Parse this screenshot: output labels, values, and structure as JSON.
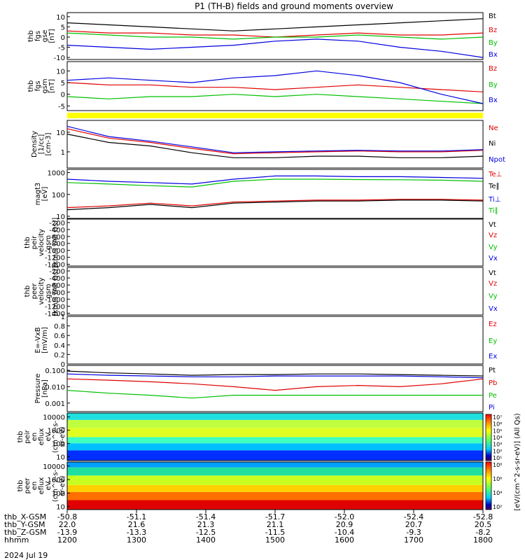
{
  "title": "P1 (TH-B) fields and ground moments overview",
  "date_label": "2024 Jul 19",
  "colors": {
    "black": "#000000",
    "red": "#e00000",
    "green": "#00c000",
    "blue": "#0000e0",
    "yellow": "#ffff00"
  },
  "chart_data": [
    {
      "type": "line",
      "name": "fgs_gse",
      "ylabel_lines": [
        "thb",
        "fgs",
        "gse",
        "[nT]"
      ],
      "ylim": [
        -11,
        12
      ],
      "y_ticks": [
        10,
        5,
        0,
        -5,
        -10
      ],
      "series": [
        {
          "name": "Bt",
          "color": "black",
          "x": [
            0,
            0.1,
            0.2,
            0.3,
            0.4,
            0.5,
            0.6,
            0.7,
            0.8,
            0.9,
            1.0
          ],
          "y": [
            7,
            6,
            5,
            4,
            3,
            4,
            5,
            6,
            7,
            8,
            9
          ]
        },
        {
          "name": "Bz",
          "color": "red",
          "x": [
            0,
            0.1,
            0.2,
            0.3,
            0.4,
            0.5,
            0.6,
            0.7,
            0.8,
            0.9,
            1.0
          ],
          "y": [
            3,
            2,
            2,
            1,
            1,
            0,
            1,
            2,
            1,
            1,
            2
          ]
        },
        {
          "name": "By",
          "color": "green",
          "x": [
            0,
            0.1,
            0.2,
            0.3,
            0.4,
            0.5,
            0.6,
            0.7,
            0.8,
            0.9,
            1.0
          ],
          "y": [
            2,
            1,
            0,
            0,
            -1,
            0,
            0,
            1,
            0,
            -1,
            0
          ]
        },
        {
          "name": "Bx",
          "color": "blue",
          "x": [
            0,
            0.1,
            0.2,
            0.3,
            0.4,
            0.5,
            0.6,
            0.7,
            0.8,
            0.9,
            1.0
          ],
          "y": [
            -4,
            -5,
            -6,
            -5,
            -4,
            -2,
            -1,
            -2,
            -5,
            -7,
            -10
          ]
        }
      ]
    },
    {
      "type": "line",
      "name": "fgs_gsm",
      "ylabel_lines": [
        "thb",
        "fgs",
        "gsm",
        "[nT]"
      ],
      "ylim": [
        -7,
        14
      ],
      "y_ticks": [
        10,
        5,
        0,
        -5
      ],
      "series": [
        {
          "name": "Bz",
          "color": "red",
          "x": [
            0,
            0.1,
            0.2,
            0.3,
            0.4,
            0.5,
            0.6,
            0.7,
            0.8,
            0.9,
            1.0
          ],
          "y": [
            5,
            4,
            4,
            3,
            3,
            2,
            3,
            4,
            3,
            2,
            1
          ]
        },
        {
          "name": "By",
          "color": "green",
          "x": [
            0,
            0.1,
            0.2,
            0.3,
            0.4,
            0.5,
            0.6,
            0.7,
            0.8,
            0.9,
            1.0
          ],
          "y": [
            -1,
            -2,
            -1,
            -1,
            0,
            -1,
            0,
            -1,
            -2,
            -3,
            -4
          ]
        },
        {
          "name": "Bx",
          "color": "blue",
          "x": [
            0,
            0.1,
            0.2,
            0.3,
            0.4,
            0.5,
            0.6,
            0.7,
            0.8,
            0.9,
            1.0
          ],
          "y": [
            6,
            7,
            6,
            5,
            7,
            8,
            10,
            8,
            5,
            0,
            -4
          ]
        }
      ]
    },
    {
      "type": "line",
      "name": "density",
      "ylabel_lines": [
        "Density",
        "[1/cc]",
        "[cm-3]"
      ],
      "scale": "log",
      "ylim": [
        0.15,
        40
      ],
      "y_ticks": [
        10,
        1
      ],
      "series": [
        {
          "name": "Ne",
          "color": "red",
          "x": [
            0,
            0.1,
            0.2,
            0.3,
            0.4,
            0.5,
            0.6,
            0.7,
            0.8,
            0.9,
            1.0
          ],
          "y": [
            15,
            5,
            3,
            1.5,
            0.8,
            0.9,
            1,
            1.1,
            1.0,
            1.0,
            1.2
          ]
        },
        {
          "name": "Ni",
          "color": "black",
          "x": [
            0,
            0.1,
            0.2,
            0.3,
            0.4,
            0.5,
            0.6,
            0.7,
            0.8,
            0.9,
            1.0
          ],
          "y": [
            8,
            3,
            2,
            0.9,
            0.5,
            0.5,
            0.6,
            0.6,
            0.5,
            0.5,
            0.6
          ]
        },
        {
          "name": "Npot",
          "color": "blue",
          "x": [
            0,
            0.1,
            0.2,
            0.3,
            0.4,
            0.5,
            0.6,
            0.7,
            0.8,
            0.9,
            1.0
          ],
          "y": [
            20,
            6,
            3.5,
            1.8,
            0.9,
            1.0,
            1.1,
            1.2,
            1.1,
            1.1,
            1.3
          ]
        }
      ]
    },
    {
      "type": "line",
      "name": "temperature",
      "ylabel_lines": [
        "magt3",
        "[eV]"
      ],
      "scale": "log",
      "ylim": [
        8,
        1400
      ],
      "y_ticks": [
        1000,
        100,
        10
      ],
      "series": [
        {
          "name": "Te⊥",
          "color": "red",
          "x": [
            0,
            0.1,
            0.2,
            0.3,
            0.4,
            0.5,
            0.6,
            0.7,
            0.8,
            0.9,
            1.0
          ],
          "y": [
            25,
            30,
            40,
            30,
            45,
            50,
            55,
            55,
            60,
            60,
            55
          ]
        },
        {
          "name": "Te∥",
          "color": "black",
          "x": [
            0,
            0.1,
            0.2,
            0.3,
            0.4,
            0.5,
            0.6,
            0.7,
            0.8,
            0.9,
            1.0
          ],
          "y": [
            20,
            25,
            35,
            25,
            40,
            45,
            50,
            50,
            55,
            55,
            50
          ]
        },
        {
          "name": "Ti⊥",
          "color": "blue",
          "x": [
            0,
            0.1,
            0.2,
            0.3,
            0.4,
            0.5,
            0.6,
            0.7,
            0.8,
            0.9,
            1.0
          ],
          "y": [
            500,
            400,
            350,
            300,
            500,
            700,
            700,
            650,
            650,
            600,
            550
          ]
        },
        {
          "name": "Ti∥",
          "color": "green",
          "x": [
            0,
            0.1,
            0.2,
            0.3,
            0.4,
            0.5,
            0.6,
            0.7,
            0.8,
            0.9,
            1.0
          ],
          "y": [
            350,
            300,
            250,
            220,
            400,
            500,
            500,
            480,
            470,
            450,
            400
          ]
        }
      ]
    },
    {
      "type": "line",
      "name": "peir_velocity",
      "ylabel_lines": [
        "thb",
        "peir",
        "velocity",
        "gsm",
        "[km/s (All Qs)]"
      ],
      "ylim": [
        -1450,
        -100
      ],
      "y_ticks": [
        -200,
        -400,
        -600,
        -800,
        -1000,
        -1200,
        -1400
      ],
      "series": [
        {
          "name": "Vt",
          "color": "black"
        },
        {
          "name": "Vz",
          "color": "red"
        },
        {
          "name": "Vy",
          "color": "green"
        },
        {
          "name": "Vx",
          "color": "blue"
        }
      ]
    },
    {
      "type": "line",
      "name": "peer_velocity",
      "ylabel_lines": [
        "thb",
        "peer",
        "velocity",
        "gsm",
        "[km/s (All Qs)]"
      ],
      "ylim": [
        -1450,
        -100
      ],
      "y_ticks": [
        -200,
        -400,
        -600,
        -800,
        -1000,
        -1200,
        -1400
      ],
      "series": [
        {
          "name": "Vt",
          "color": "black"
        },
        {
          "name": "Vz",
          "color": "red"
        },
        {
          "name": "Vy",
          "color": "green"
        },
        {
          "name": "Vx",
          "color": "blue"
        }
      ]
    },
    {
      "type": "line",
      "name": "e_field",
      "ylabel_lines": [
        "E=-VxB",
        "[mV/m]"
      ],
      "ylim": [
        0,
        1.0
      ],
      "y_ticks": [
        1.0,
        0.8,
        0.6,
        0.4,
        0.2,
        0.0
      ],
      "series": [
        {
          "name": "Ez",
          "color": "red"
        },
        {
          "name": "Ey",
          "color": "green"
        },
        {
          "name": "Ex",
          "color": "blue"
        }
      ]
    },
    {
      "type": "line",
      "name": "pressure",
      "ylabel_lines": [
        "Pressure",
        "[nPa]"
      ],
      "scale": "log",
      "ylim": [
        0.0003,
        0.2
      ],
      "y_ticks": [
        0.1,
        0.01,
        0.001
      ],
      "y_tick_labels": [
        "0.100",
        "0.010",
        "0.001"
      ],
      "series": [
        {
          "name": "Pt",
          "color": "black",
          "x": [
            0,
            0.1,
            0.2,
            0.3,
            0.4,
            0.5,
            0.6,
            0.7,
            0.8,
            0.9,
            1.0
          ],
          "y": [
            0.09,
            0.07,
            0.06,
            0.05,
            0.055,
            0.055,
            0.06,
            0.06,
            0.055,
            0.05,
            0.045
          ]
        },
        {
          "name": "Pb",
          "color": "red",
          "x": [
            0,
            0.1,
            0.2,
            0.3,
            0.4,
            0.5,
            0.6,
            0.7,
            0.8,
            0.9,
            1.0
          ],
          "y": [
            0.03,
            0.025,
            0.02,
            0.015,
            0.01,
            0.006,
            0.01,
            0.012,
            0.01,
            0.015,
            0.03
          ]
        },
        {
          "name": "Pe",
          "color": "green",
          "x": [
            0,
            0.1,
            0.2,
            0.3,
            0.4,
            0.5,
            0.6,
            0.7,
            0.8,
            0.9,
            1.0
          ],
          "y": [
            0.006,
            0.004,
            0.003,
            0.002,
            0.003,
            0.003,
            0.003,
            0.003,
            0.003,
            0.003,
            0.003
          ]
        },
        {
          "name": "Pi",
          "color": "blue",
          "x": [
            0,
            0.1,
            0.2,
            0.3,
            0.4,
            0.5,
            0.6,
            0.7,
            0.8,
            0.9,
            1.0
          ],
          "y": [
            0.06,
            0.05,
            0.045,
            0.04,
            0.04,
            0.045,
            0.045,
            0.045,
            0.045,
            0.04,
            0.035
          ]
        }
      ]
    },
    {
      "type": "heatmap",
      "name": "peir_spectrogram",
      "ylabel_lines": [
        "thb",
        "peir",
        "en",
        "eflux",
        "eV",
        "(cm^2-s-",
        "sr-eV)"
      ],
      "scale": "log",
      "ylim": [
        5,
        20000
      ],
      "y_ticks": [
        10000,
        1000,
        100,
        10
      ],
      "bands": [
        {
          "y": [
            5,
            30
          ],
          "color": "#0030ff"
        },
        {
          "y": [
            30,
            100
          ],
          "color": "#00c0ff"
        },
        {
          "y": [
            100,
            300
          ],
          "color": "#40ffc0"
        },
        {
          "y": [
            300,
            1500
          ],
          "color": "#e0ff20"
        },
        {
          "y": [
            1500,
            6000
          ],
          "color": "#c0ff40"
        },
        {
          "y": [
            6000,
            20000
          ],
          "color": "#20e0e0"
        }
      ]
    },
    {
      "type": "heatmap",
      "name": "peer_spectrogram",
      "ylabel_lines": [
        "thb",
        "peer",
        "en",
        "eflux",
        "eV",
        "(cm^2-s-",
        "sr-eV)"
      ],
      "scale": "log",
      "ylim": [
        6,
        20000
      ],
      "y_ticks": [
        10000,
        1000,
        100,
        10
      ],
      "bands": [
        {
          "y": [
            6,
            30
          ],
          "color": "#e00000"
        },
        {
          "y": [
            30,
            120
          ],
          "color": "#ff7000"
        },
        {
          "y": [
            120,
            400
          ],
          "color": "#ffd000"
        },
        {
          "y": [
            400,
            2000
          ],
          "color": "#c8ff20"
        },
        {
          "y": [
            2000,
            8000
          ],
          "color": "#20e0a0"
        },
        {
          "y": [
            8000,
            20000
          ],
          "color": "#00a0ff"
        }
      ]
    }
  ],
  "colorbar": {
    "label": "[eV/(cm^2-s-sr-eV)] (All Qs)",
    "top_ticks": [
      "10^7",
      "10^6",
      "10^5",
      "10^4",
      "10^3",
      "10^2",
      "10^1"
    ],
    "bottom_ticks": [
      "10^8",
      "10^6",
      "10^4",
      "10^2"
    ]
  },
  "x_axis": {
    "row_labels": [
      "thb_X-GSM",
      "thb_Y-GSM",
      "thb_Z-GSM",
      "hhmm"
    ],
    "columns": [
      [
        "-50.8",
        "22.0",
        "-13.9",
        "1200"
      ],
      [
        "-51.1",
        "21.6",
        "-13.3",
        "1300"
      ],
      [
        "-51.4",
        "21.3",
        "-12.5",
        "1400"
      ],
      [
        "-51.7",
        "21.1",
        "-11.5",
        "1500"
      ],
      [
        "-52.0",
        "20.9",
        "-10.4",
        "1600"
      ],
      [
        "-52.4",
        "20.7",
        "-9.3",
        "1700"
      ],
      [
        "-52.8",
        "20.5",
        "-8.2",
        "1800"
      ]
    ]
  }
}
